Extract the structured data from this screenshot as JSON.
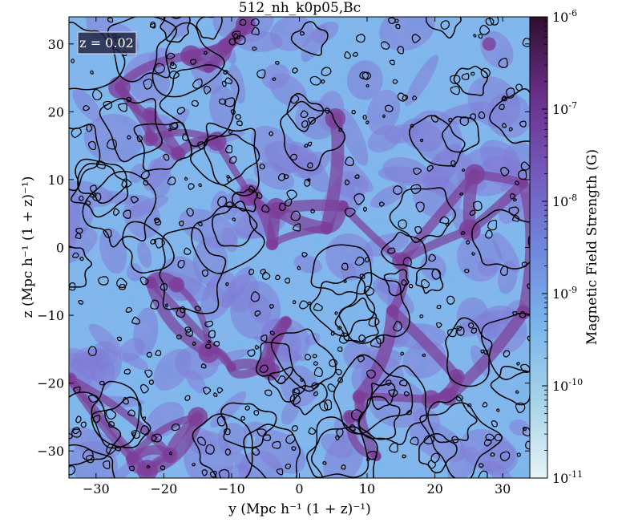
{
  "chart_data": {
    "type": "heatmap",
    "title": "512_nh_k0p05,Bc",
    "xlabel": "y (Mpc h⁻¹ (1 + z)⁻¹)",
    "ylabel": "z (Mpc h⁻¹ (1 + z)⁻¹)",
    "xlim": [
      -34,
      34
    ],
    "ylim": [
      -34,
      34
    ],
    "x_ticks": [
      -30,
      -20,
      -10,
      0,
      10,
      20,
      30
    ],
    "y_ticks": [
      -30,
      -20,
      -10,
      0,
      10,
      20,
      30
    ],
    "x_tick_labels": [
      "−30",
      "−20",
      "−10",
      "0",
      "10",
      "20",
      "30"
    ],
    "y_tick_labels": [
      "−30",
      "−20",
      "−10",
      "0",
      "10",
      "20",
      "30"
    ],
    "annotation": "z = 0.02",
    "colorbar": {
      "label": "Magnetic Field Strength (G)",
      "scale": "log",
      "range": [
        1e-11,
        1e-06
      ],
      "ticks": [
        {
          "mantissa": "10",
          "exp": "-11",
          "value": 1e-11
        },
        {
          "mantissa": "10",
          "exp": "-10",
          "value": 1e-10
        },
        {
          "mantissa": "10",
          "exp": "-9",
          "value": 1e-09
        },
        {
          "mantissa": "10",
          "exp": "-8",
          "value": 1e-08
        },
        {
          "mantissa": "10",
          "exp": "-7",
          "value": 1e-07
        },
        {
          "mantissa": "10",
          "exp": "-6",
          "value": 1e-06
        }
      ],
      "colors": [
        "#e6f3f6",
        "#a6d3e8",
        "#7ab4ea",
        "#6f87dc",
        "#7458bb",
        "#6a2f88",
        "#2e0f2d"
      ]
    },
    "field_colors": {
      "void": "#7ab8ec",
      "sheet": "#7a76d4",
      "filament": "#7c3f98",
      "contour": "#000000"
    }
  }
}
